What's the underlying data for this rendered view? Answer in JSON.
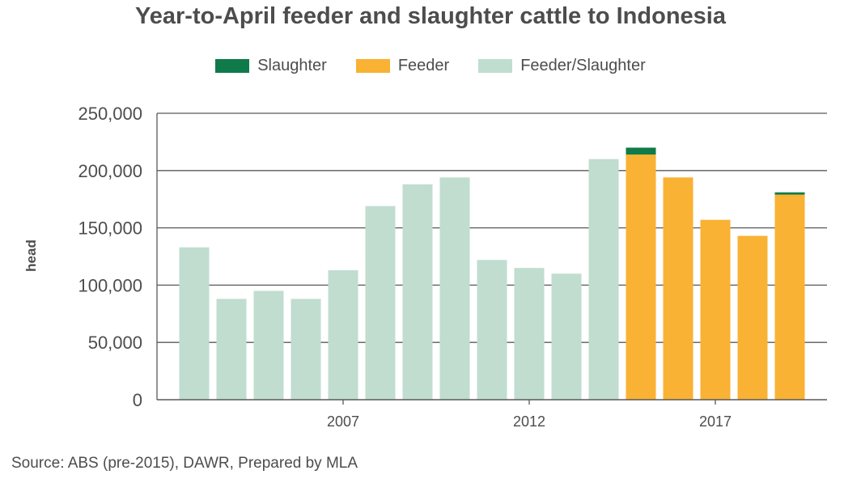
{
  "chart_data": {
    "type": "bar",
    "stacked": true,
    "title": "Year-to-April feeder and slaughter cattle to Indonesia",
    "ylabel": "head",
    "xlabel": "",
    "ylim": [
      0,
      250000
    ],
    "yticks": [
      0,
      50000,
      100000,
      150000,
      200000,
      250000
    ],
    "ytick_labels": [
      "0",
      "50,000",
      "100,000",
      "150,000",
      "200,000",
      "250,000"
    ],
    "categories": [
      "2003",
      "2004",
      "2005",
      "2006",
      "2007",
      "2008",
      "2009",
      "2010",
      "2011",
      "2012",
      "2013",
      "2014",
      "2015",
      "2016",
      "2017",
      "2018",
      "2019"
    ],
    "xtick_labels": [
      "2007",
      "2012",
      "2017"
    ],
    "grid": true,
    "legend_position": "top-center",
    "series": [
      {
        "name": "Feeder/Slaughter",
        "color": "#c0ddd0",
        "values": [
          133000,
          88000,
          95000,
          88000,
          113000,
          169000,
          188000,
          194000,
          122000,
          115000,
          110000,
          210000,
          0,
          0,
          0,
          0,
          0
        ]
      },
      {
        "name": "Feeder",
        "color": "#f9b233",
        "values": [
          0,
          0,
          0,
          0,
          0,
          0,
          0,
          0,
          0,
          0,
          0,
          0,
          214000,
          194000,
          157000,
          143000,
          179000
        ]
      },
      {
        "name": "Slaughter",
        "color": "#0f7b4a",
        "values": [
          0,
          0,
          0,
          0,
          0,
          0,
          0,
          0,
          0,
          0,
          0,
          0,
          6000,
          0,
          0,
          0,
          2000
        ]
      }
    ],
    "legend_order": [
      "Slaughter",
      "Feeder",
      "Feeder/Slaughter"
    ]
  },
  "source": "Source: ABS (pre-2015), DAWR, Prepared by MLA"
}
